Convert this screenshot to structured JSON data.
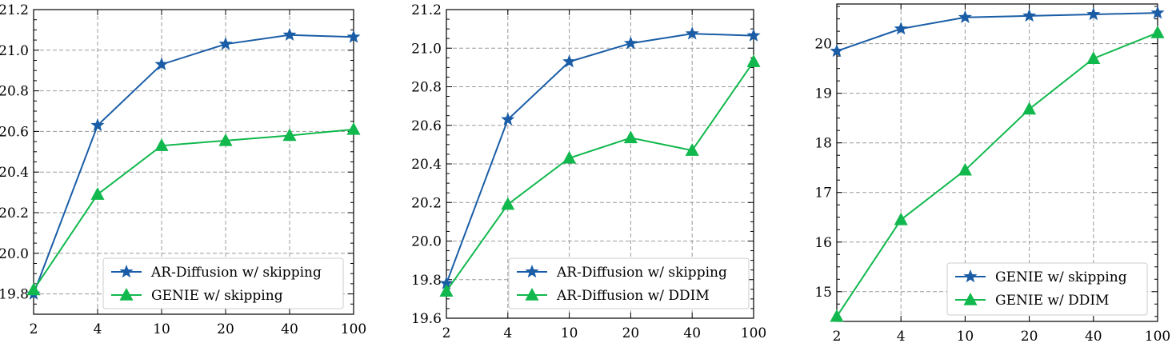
{
  "colors": {
    "blue": "#1a5da6",
    "green": "#11b84d"
  },
  "chart_data": [
    {
      "type": "line",
      "x": [
        "2",
        "4",
        "10",
        "20",
        "40",
        "100"
      ],
      "ylim": [
        19.7,
        21.2
      ],
      "yticks": [
        19.8,
        20.0,
        20.2,
        20.4,
        20.6,
        20.8,
        21.0,
        21.2
      ],
      "ytick_labels": [
        "19.8",
        "20.0",
        "20.2",
        "20.4",
        "20.6",
        "20.8",
        "21.0",
        "21.2"
      ],
      "grid": true,
      "legend_position": "bottom-right",
      "series": [
        {
          "name": "AR-Diffusion w/ skipping",
          "color": "#1a5da6",
          "marker": "star",
          "values": [
            19.8,
            20.63,
            20.93,
            21.03,
            21.075,
            21.065
          ]
        },
        {
          "name": "GENIE w/ skipping",
          "color": "#11b84d",
          "marker": "triangle",
          "values": [
            19.82,
            20.29,
            20.53,
            20.555,
            20.58,
            20.61
          ]
        }
      ]
    },
    {
      "type": "line",
      "x": [
        "2",
        "4",
        "10",
        "20",
        "40",
        "100"
      ],
      "ylim": [
        19.6,
        21.2
      ],
      "yticks": [
        19.6,
        19.8,
        20.0,
        20.2,
        20.4,
        20.6,
        20.8,
        21.0,
        21.2
      ],
      "ytick_labels": [
        "19.6",
        "19.8",
        "20.0",
        "20.2",
        "20.4",
        "20.6",
        "20.8",
        "21.0",
        "21.2"
      ],
      "grid": true,
      "legend_position": "bottom-right",
      "series": [
        {
          "name": "AR-Diffusion w/ skipping",
          "color": "#1a5da6",
          "marker": "star",
          "values": [
            19.78,
            20.63,
            20.93,
            21.025,
            21.075,
            21.065
          ]
        },
        {
          "name": "AR-Diffusion w/ DDIM",
          "color": "#11b84d",
          "marker": "triangle",
          "values": [
            19.74,
            20.19,
            20.43,
            20.535,
            20.47,
            20.93
          ]
        }
      ]
    },
    {
      "type": "line",
      "x": [
        "2",
        "4",
        "10",
        "20",
        "40",
        "100"
      ],
      "ylim": [
        14.4,
        20.8
      ],
      "yticks": [
        15,
        16,
        17,
        18,
        19,
        20
      ],
      "ytick_labels": [
        "15",
        "16",
        "17",
        "18",
        "19",
        "20"
      ],
      "grid": true,
      "legend_position": "bottom-right",
      "series": [
        {
          "name": "GENIE w/ skipping",
          "color": "#1a5da6",
          "marker": "star",
          "values": [
            19.85,
            20.3,
            20.53,
            20.56,
            20.59,
            20.62
          ]
        },
        {
          "name": "GENIE w/ DDIM",
          "color": "#11b84d",
          "marker": "triangle",
          "values": [
            14.5,
            16.45,
            17.45,
            18.68,
            19.7,
            20.22
          ]
        }
      ]
    }
  ]
}
